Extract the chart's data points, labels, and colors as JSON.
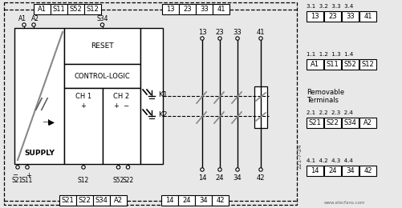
{
  "bg_color": "#e8e8e8",
  "fig_width": 5.01,
  "fig_height": 2.6,
  "top_labels_left": [
    "A1",
    "S11",
    "S52",
    "S12"
  ],
  "top_labels_right": [
    "13",
    "23",
    "33",
    "41"
  ],
  "bot_labels_left": [
    "S21",
    "S22",
    "S34",
    "A2"
  ],
  "bot_labels_right": [
    "14",
    "24",
    "34",
    "42"
  ],
  "supply_label": "SUPPLY",
  "reset_label": "RESET",
  "control_logic_label": "CONTROL-LOGIC",
  "ch1_label": "CH 1",
  "ch2_label": "CH 2",
  "ch1_sub": "+",
  "ch2_sub": "+  −",
  "k1_label": "K1",
  "k2_label": "K2",
  "removable_label": "Removable\nTerminals",
  "right_groups": [
    {
      "title": "3.1  3.2  3.3  3.4",
      "labels": [
        "13",
        "23",
        "33",
        "41"
      ]
    },
    {
      "title": "1.1  1.2  1.3  1.4",
      "labels": [
        "A1",
        "S11",
        "S52",
        "S12"
      ]
    },
    {
      "title": "2.1  2.2  2.3  2.4",
      "labels": [
        "S21",
        "S22",
        "S34",
        "A2"
      ]
    },
    {
      "title": "4.1  4.2  4.3  4.4",
      "labels": [
        "14",
        "24",
        "34",
        "42"
      ]
    }
  ],
  "watermark": "221-7-24",
  "website": "www.elecfans.com",
  "contact_top": [
    "13",
    "23",
    "33",
    "41"
  ],
  "contact_bot": [
    "14",
    "24",
    "34",
    "42"
  ]
}
